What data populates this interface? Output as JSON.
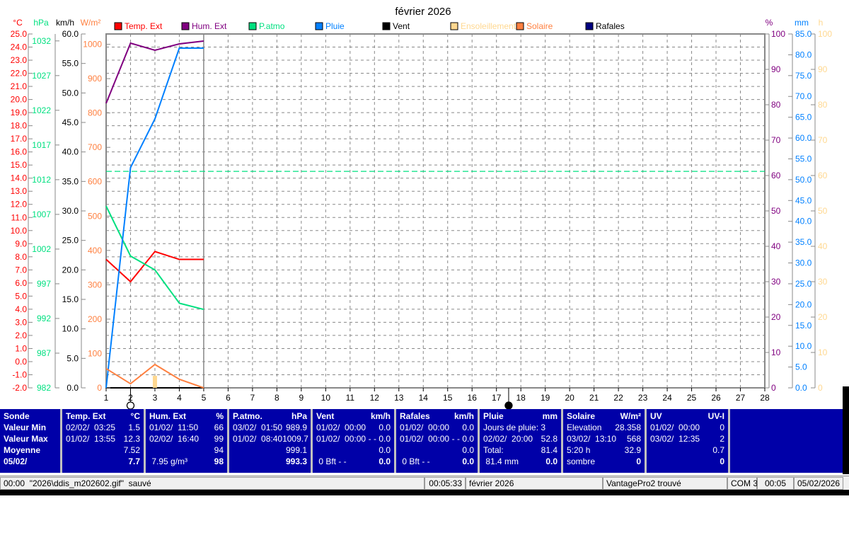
{
  "chart_data": {
    "type": "line",
    "title": "février 2026",
    "x_ticks": [
      1,
      2,
      3,
      4,
      5,
      6,
      7,
      8,
      9,
      10,
      11,
      12,
      13,
      14,
      15,
      16,
      17,
      18,
      19,
      20,
      21,
      22,
      23,
      24,
      25,
      26,
      27,
      28
    ],
    "xlim": [
      1,
      28
    ],
    "grid": true,
    "legend_placement": "top",
    "axes": {
      "temp": {
        "unit": "°C",
        "range": [
          -2,
          25
        ],
        "color": "#ff0000"
      },
      "press": {
        "unit": "hPa",
        "range": [
          982,
          1033
        ],
        "ticks": [
          982,
          987,
          992,
          997,
          1002,
          1007,
          1012,
          1017,
          1022,
          1027,
          1032
        ],
        "color": "#00e080"
      },
      "wind": {
        "unit": "km/h",
        "range": [
          0,
          60
        ],
        "color": "#000000"
      },
      "solar": {
        "unit": "W/m²",
        "range": [
          0,
          1030
        ],
        "ticks": [
          0,
          100,
          200,
          300,
          400,
          500,
          600,
          700,
          800,
          900,
          1000
        ],
        "color": "#ff8040"
      },
      "hum": {
        "unit": "%",
        "range": [
          0,
          100
        ],
        "color": "#800080"
      },
      "rain": {
        "unit": "mm",
        "range": [
          0,
          85
        ],
        "color": "#0080ff"
      },
      "sun": {
        "unit": "h",
        "range": [
          0,
          100
        ],
        "color": "#ffd890"
      }
    },
    "series": [
      {
        "name": "Temp. Ext",
        "color": "#ff0000",
        "axis": "temp",
        "x": [
          1,
          2,
          3,
          4,
          5
        ],
        "values": [
          7.8,
          6.1,
          8.4,
          7.8,
          7.8
        ]
      },
      {
        "name": "Hum. Ext",
        "color": "#800080",
        "axis": "hum",
        "x": [
          1,
          2,
          3,
          4,
          5
        ],
        "values": [
          80.4,
          97.4,
          95.4,
          97.2,
          98
        ]
      },
      {
        "name": "P.atmo",
        "color": "#00e080",
        "axis": "press",
        "x": [
          1,
          2,
          3,
          4,
          5
        ],
        "values": [
          1008.2,
          1001,
          999,
          994.2,
          993.3
        ]
      },
      {
        "name": "Pluie",
        "color": "#0080ff",
        "axis": "rain",
        "x": [
          1,
          2,
          3,
          4,
          5
        ],
        "values": [
          0,
          52.9,
          64.6,
          81.6,
          81.6
        ]
      },
      {
        "name": "Vent",
        "color": "#000000",
        "axis": "wind",
        "x": [
          1,
          2,
          3,
          4,
          5
        ],
        "values": [
          0,
          0,
          0,
          0,
          0
        ]
      },
      {
        "name": "Ensoleillement",
        "color": "#ffd890",
        "axis": "sun",
        "x": [
          3
        ],
        "values": [
          3.4
        ],
        "style": "bar"
      },
      {
        "name": "Solaire",
        "color": "#ff8040",
        "axis": "solar",
        "x": [
          1,
          2,
          3,
          4,
          5
        ],
        "values": [
          56,
          12,
          68,
          25,
          0
        ]
      },
      {
        "name": "Rafales",
        "color": "#000080",
        "axis": "wind",
        "x": [
          1,
          2,
          3,
          4,
          5
        ],
        "values": [
          0,
          0,
          0,
          0,
          0
        ]
      }
    ],
    "reference_line": {
      "axis": "press",
      "value": 1013.2,
      "color": "#00e080"
    },
    "moon_markers": [
      {
        "x": 2,
        "phase": "full"
      },
      {
        "x": 17.5,
        "phase": "new"
      }
    ]
  },
  "panel": {
    "cols": [
      {
        "h": [
          "Sonde",
          ""
        ],
        "r": [
          [
            "Valeur Min",
            ""
          ],
          [
            "Valeur Max",
            ""
          ],
          [
            "Moyenne",
            ""
          ],
          [
            "05/02/",
            ""
          ]
        ],
        "w": 88,
        "boldLabels": true
      },
      {
        "h": [
          "Temp. Ext",
          "°C"
        ],
        "r": [
          [
            "02/02/  03:25",
            "1.5"
          ],
          [
            "01/02/  13:55",
            "12.3"
          ],
          [
            "",
            "7.52"
          ],
          [
            "",
            "7.7"
          ]
        ],
        "w": 118
      },
      {
        "h": [
          "Hum. Ext",
          "%"
        ],
        "r": [
          [
            "01/02/  11:50",
            "66"
          ],
          [
            "02/02/  16:40",
            "99"
          ],
          [
            "",
            "94"
          ],
          [
            " 7.95 g/m³",
            "98"
          ]
        ],
        "w": 118
      },
      {
        "h": [
          "P.atmo.",
          "hPa"
        ],
        "r": [
          [
            "03/02/  01:50",
            "989.9"
          ],
          [
            "01/02/  08:40",
            "1009.7"
          ],
          [
            "",
            "999.1"
          ],
          [
            "",
            "993.3"
          ]
        ],
        "w": 118
      },
      {
        "h": [
          "Vent",
          "km/h"
        ],
        "r": [
          [
            "01/02/  00:00",
            "0.0"
          ],
          [
            "01/02/  00:00",
            "- - 0.0"
          ],
          [
            "",
            "0.0"
          ],
          [
            " 0 Bft - -",
            "0.0"
          ]
        ],
        "w": 118
      },
      {
        "h": [
          "Rafales",
          "km/h"
        ],
        "r": [
          [
            "01/02/  00:00",
            "0.0"
          ],
          [
            "01/02/  00:00",
            "- - 0.0"
          ],
          [
            "",
            "0.0"
          ],
          [
            " 0 Bft - -",
            "0.0"
          ]
        ],
        "w": 118
      },
      {
        "h": [
          "Pluie",
          "mm"
        ],
        "r": [
          [
            "Jours de pluie: 3",
            ""
          ],
          [
            "02/02/  20:00",
            "52.8"
          ],
          [
            "Total:",
            "81.4"
          ],
          [
            " 81.4 mm",
            "0.0"
          ]
        ],
        "w": 118
      },
      {
        "h": [
          "Solaire",
          "W/m²"
        ],
        "r": [
          [
            "Elevation",
            "28.358"
          ],
          [
            "03/02/  13:10",
            "568"
          ],
          [
            "5:20 h",
            "32.9"
          ],
          [
            "sombre",
            "0"
          ]
        ],
        "w": 118
      },
      {
        "h": [
          "UV",
          "UV-I"
        ],
        "r": [
          [
            "01/02/  00:00",
            "0"
          ],
          [
            "03/02/  12:35",
            "2"
          ],
          [
            "",
            "0.7"
          ],
          [
            "",
            "0"
          ]
        ],
        "w": 118
      }
    ]
  },
  "status": {
    "msg": "00:00  \"2026\\ddis_m202602.gif\"  sauvé",
    "time": "00:05:33",
    "month": "février 2026",
    "station": "VantagePro2 trouvé",
    "port": "COM 3",
    "clock": "00:05",
    "date": "05/02/2026"
  }
}
